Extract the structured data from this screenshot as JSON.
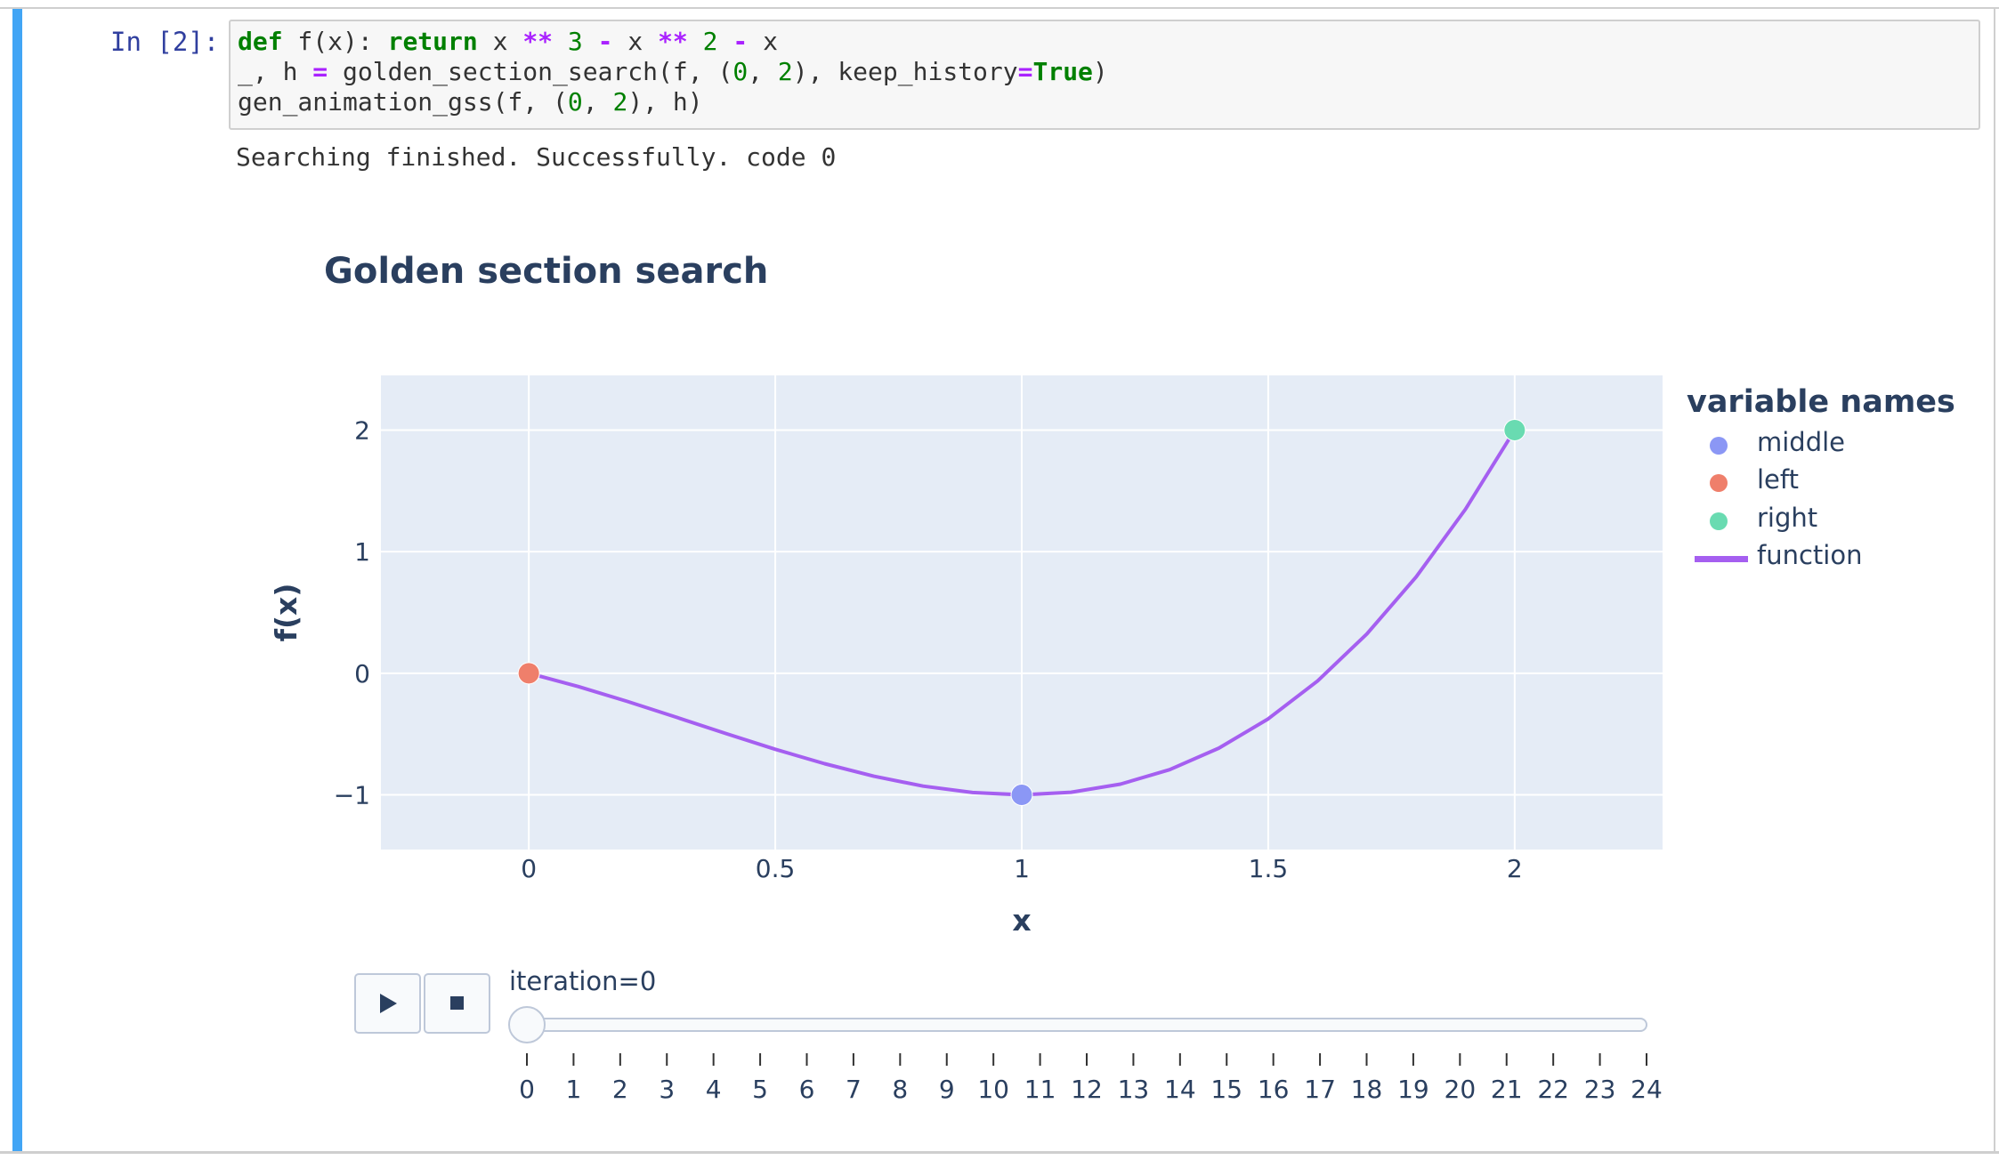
{
  "notebook": {
    "prompt": "In [2]:",
    "output_text": "Searching finished. Successfully. code 0"
  },
  "code": {
    "line1": [
      {
        "t": "def",
        "c": "kw"
      },
      {
        "t": " f(x): ",
        "c": ""
      },
      {
        "t": "return",
        "c": "kw"
      },
      {
        "t": " x ",
        "c": ""
      },
      {
        "t": "**",
        "c": "op"
      },
      {
        "t": " ",
        "c": ""
      },
      {
        "t": "3",
        "c": "num"
      },
      {
        "t": " ",
        "c": ""
      },
      {
        "t": "-",
        "c": "op"
      },
      {
        "t": " x ",
        "c": ""
      },
      {
        "t": "**",
        "c": "op"
      },
      {
        "t": " ",
        "c": ""
      },
      {
        "t": "2",
        "c": "num"
      },
      {
        "t": " ",
        "c": ""
      },
      {
        "t": "-",
        "c": "op"
      },
      {
        "t": " x",
        "c": ""
      }
    ],
    "line2": [
      {
        "t": "_, h ",
        "c": ""
      },
      {
        "t": "=",
        "c": "op"
      },
      {
        "t": " golden_section_search(f, (",
        "c": ""
      },
      {
        "t": "0",
        "c": "num"
      },
      {
        "t": ", ",
        "c": ""
      },
      {
        "t": "2",
        "c": "num"
      },
      {
        "t": "), keep_history",
        "c": ""
      },
      {
        "t": "=",
        "c": "op"
      },
      {
        "t": "True",
        "c": "kw"
      },
      {
        "t": ")",
        "c": ""
      }
    ],
    "line3": [
      {
        "t": "gen_animation_gss(f, (",
        "c": ""
      },
      {
        "t": "0",
        "c": "num"
      },
      {
        "t": ", ",
        "c": ""
      },
      {
        "t": "2",
        "c": "num"
      },
      {
        "t": "), h)",
        "c": ""
      }
    ]
  },
  "chart_data": {
    "type": "line",
    "title": "Golden section search",
    "xlabel": "x",
    "ylabel": "f(x)",
    "xlim": [
      -0.3,
      2.3
    ],
    "ylim": [
      -1.45,
      2.45
    ],
    "x_ticks": [
      "0",
      "0.5",
      "1",
      "1.5",
      "2"
    ],
    "x_tick_values": [
      0,
      0.5,
      1,
      1.5,
      2
    ],
    "y_ticks": [
      "−1",
      "0",
      "1",
      "2"
    ],
    "y_tick_values": [
      -1,
      0,
      1,
      2
    ],
    "grid": true,
    "legend_title": "variable names",
    "legend_position": "right",
    "series": [
      {
        "name": "middle",
        "kind": "marker",
        "color": "#8b97f5",
        "points": [
          [
            1,
            -1
          ]
        ]
      },
      {
        "name": "left",
        "kind": "marker",
        "color": "#ef7f6b",
        "points": [
          [
            0,
            0
          ]
        ]
      },
      {
        "name": "right",
        "kind": "marker",
        "color": "#69dbb1",
        "points": [
          [
            2,
            2
          ]
        ]
      },
      {
        "name": "function",
        "kind": "line",
        "color": "#a55ff0",
        "x": [
          0,
          0.1,
          0.2,
          0.3,
          0.4,
          0.5,
          0.6,
          0.7,
          0.8,
          0.9,
          1.0,
          1.1,
          1.2,
          1.3,
          1.4,
          1.5,
          1.6,
          1.7,
          1.8,
          1.9,
          2.0
        ],
        "y": [
          0,
          -0.109,
          -0.232,
          -0.363,
          -0.496,
          -0.625,
          -0.744,
          -0.847,
          -0.928,
          -0.981,
          -1.0,
          -0.979,
          -0.912,
          -0.793,
          -0.616,
          -0.375,
          -0.064,
          0.323,
          0.792,
          1.349,
          2.0
        ]
      }
    ]
  },
  "animation": {
    "play_icon": "play-icon",
    "stop_icon": "stop-icon",
    "slider_label": "iteration=0",
    "current_iteration": 0,
    "steps": [
      "0",
      "1",
      "2",
      "3",
      "4",
      "5",
      "6",
      "7",
      "8",
      "9",
      "10",
      "11",
      "12",
      "13",
      "14",
      "15",
      "16",
      "17",
      "18",
      "19",
      "20",
      "21",
      "22",
      "23",
      "24"
    ]
  }
}
